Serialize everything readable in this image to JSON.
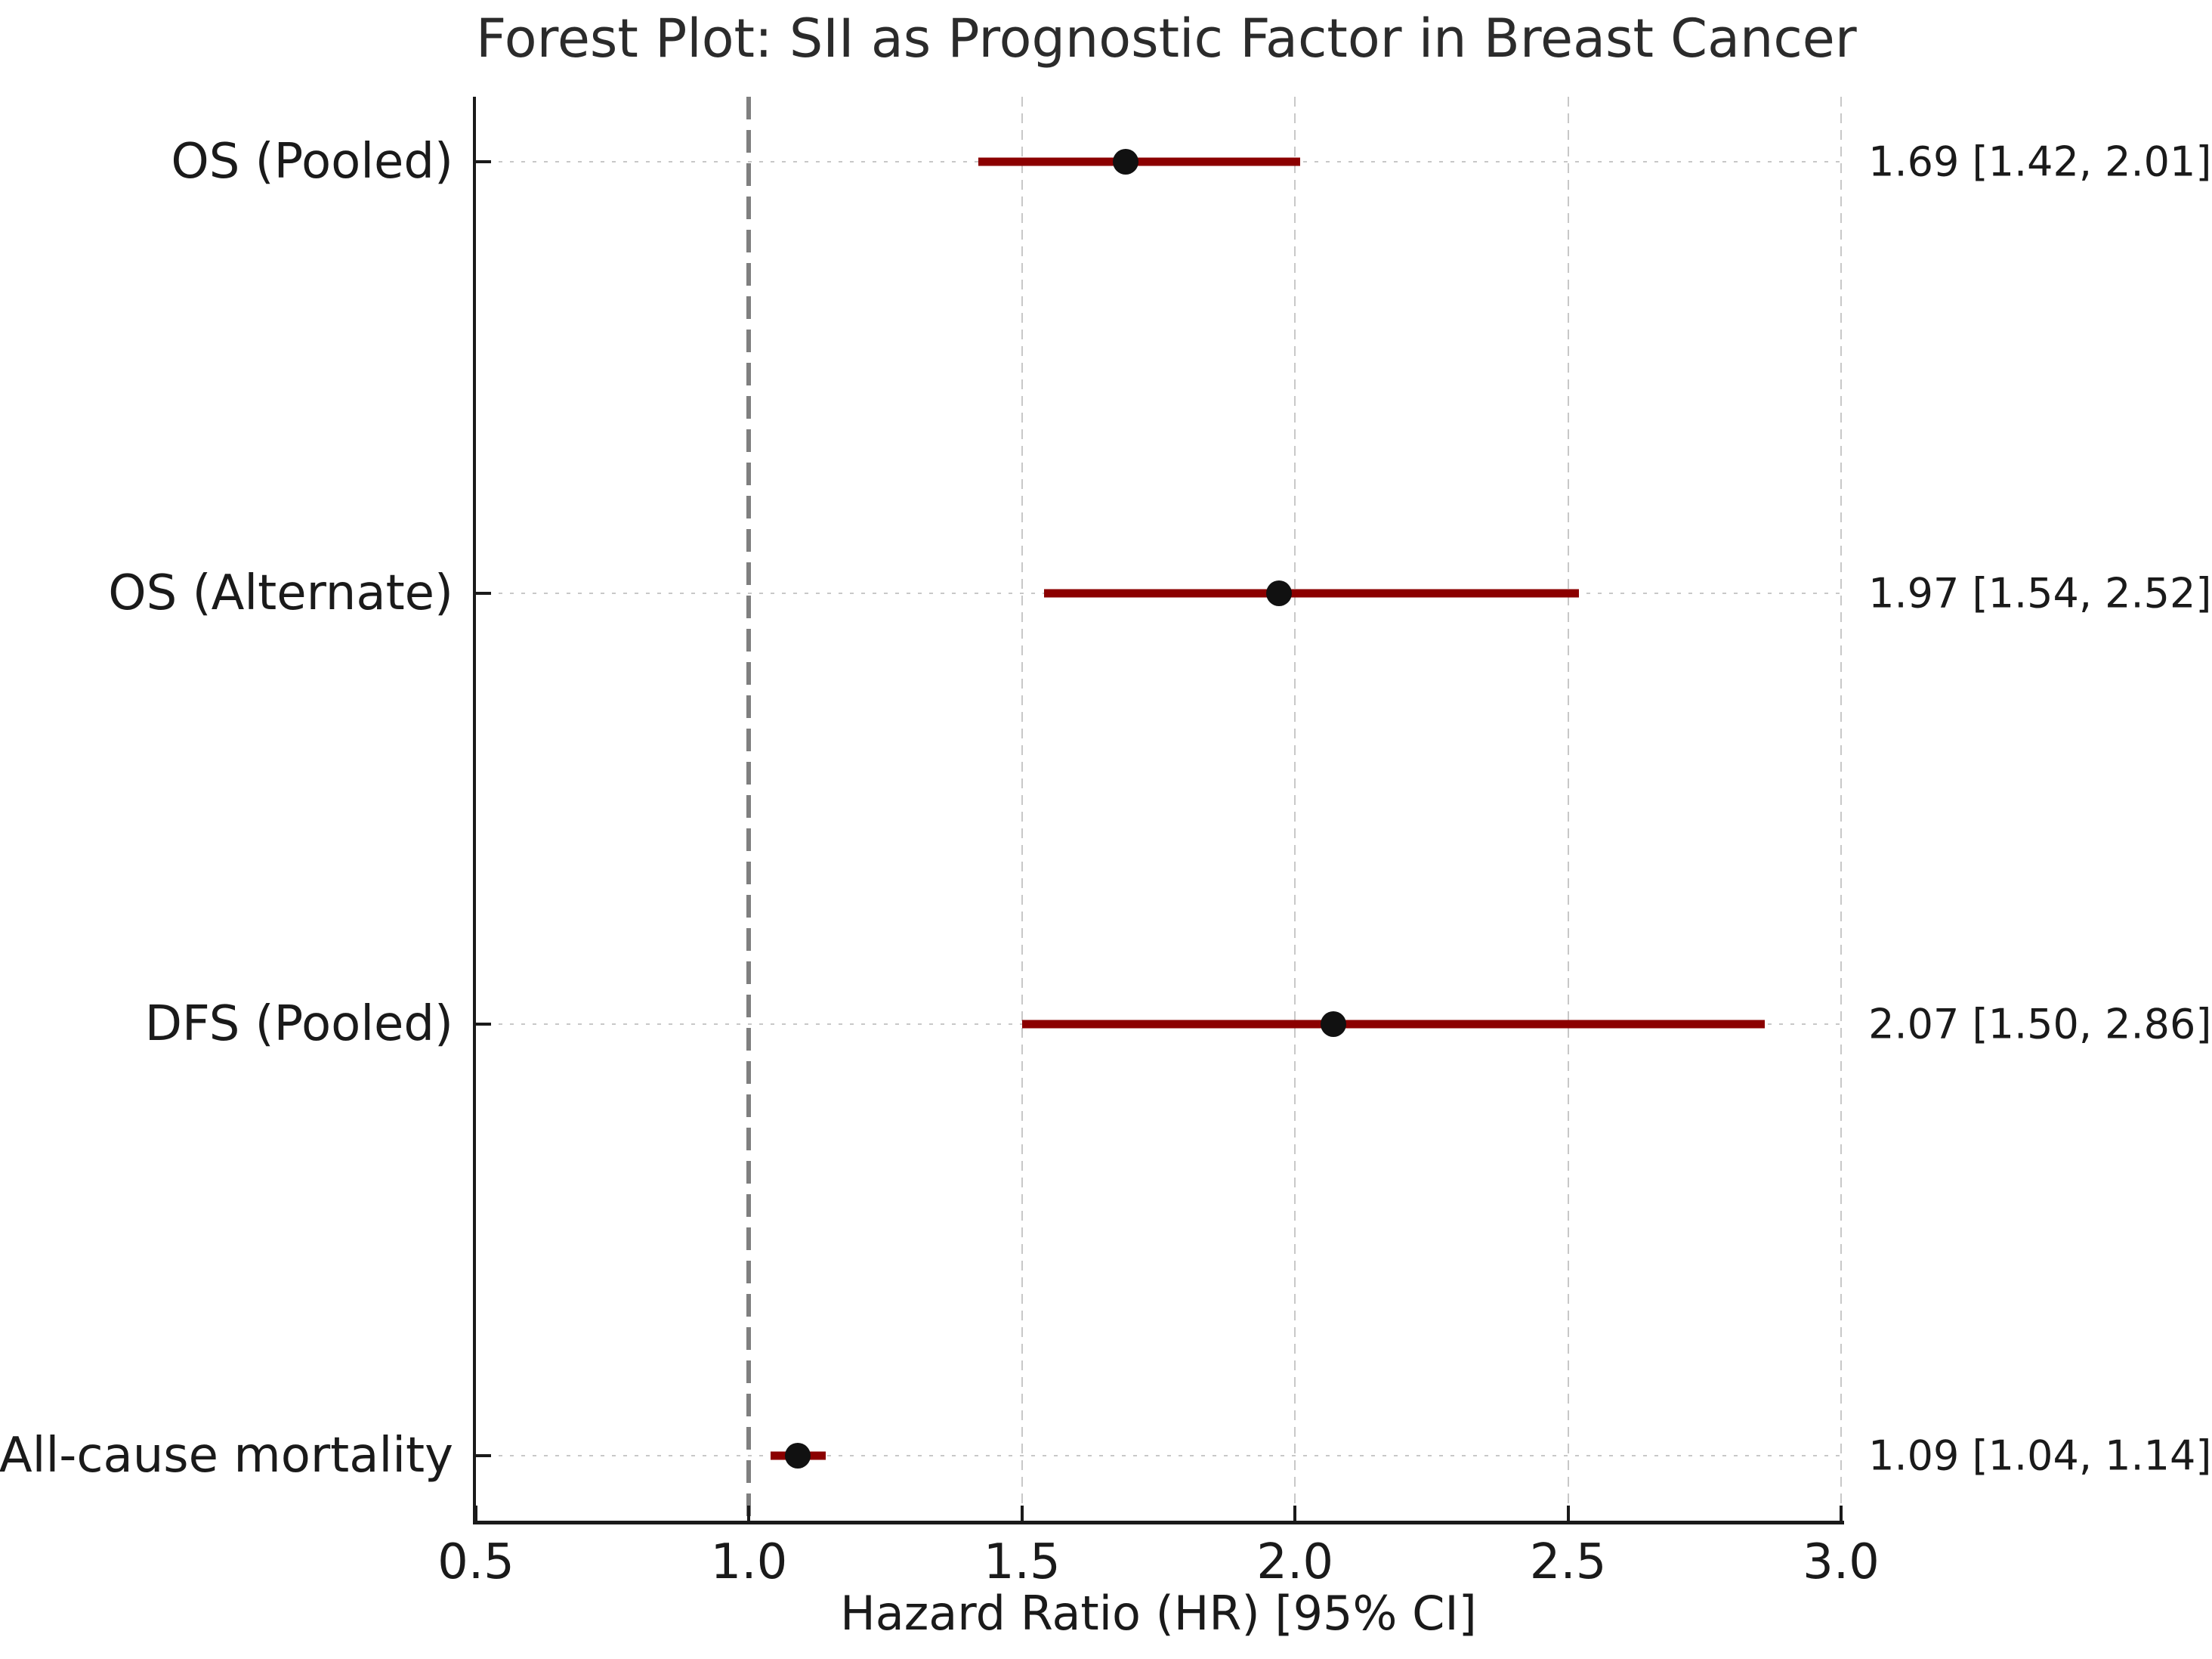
{
  "chart_data": {
    "type": "scatter",
    "subtype": "forest-plot",
    "title": "Forest Plot: SII as Prognostic Factor in Breast Cancer",
    "xlabel": "Hazard Ratio (HR) [95% CI]",
    "xlim": [
      0.5,
      3.0
    ],
    "xticks": [
      0.5,
      1.0,
      1.5,
      2.0,
      2.5,
      3.0
    ],
    "ylim": [
      -0.15,
      3.15
    ],
    "reference_line_x": 1.0,
    "annotation_x": 3.05,
    "grid": true,
    "legend": false,
    "rows": [
      {
        "label": "OS (Pooled)",
        "y": 3,
        "hr": 1.69,
        "ci_low": 1.42,
        "ci_high": 2.01,
        "annotation": "1.69 [1.42, 2.01]"
      },
      {
        "label": "OS (Alternate)",
        "y": 2,
        "hr": 1.97,
        "ci_low": 1.54,
        "ci_high": 2.52,
        "annotation": "1.97 [1.54, 2.52]"
      },
      {
        "label": "DFS (Pooled)",
        "y": 1,
        "hr": 2.07,
        "ci_low": 1.5,
        "ci_high": 2.86,
        "annotation": "2.07 [1.50, 2.86]"
      },
      {
        "label": "All-cause mortality",
        "y": 0,
        "hr": 1.09,
        "ci_low": 1.04,
        "ci_high": 1.14,
        "annotation": "1.09 [1.04, 1.14]"
      }
    ],
    "colors": {
      "ci_line": "#8B0000",
      "marker": "#111111",
      "reference_line": "#7f7f7f",
      "grid": "#c8c8c8",
      "spine": "#1a1a1a",
      "text": "#1a1a1a"
    }
  }
}
